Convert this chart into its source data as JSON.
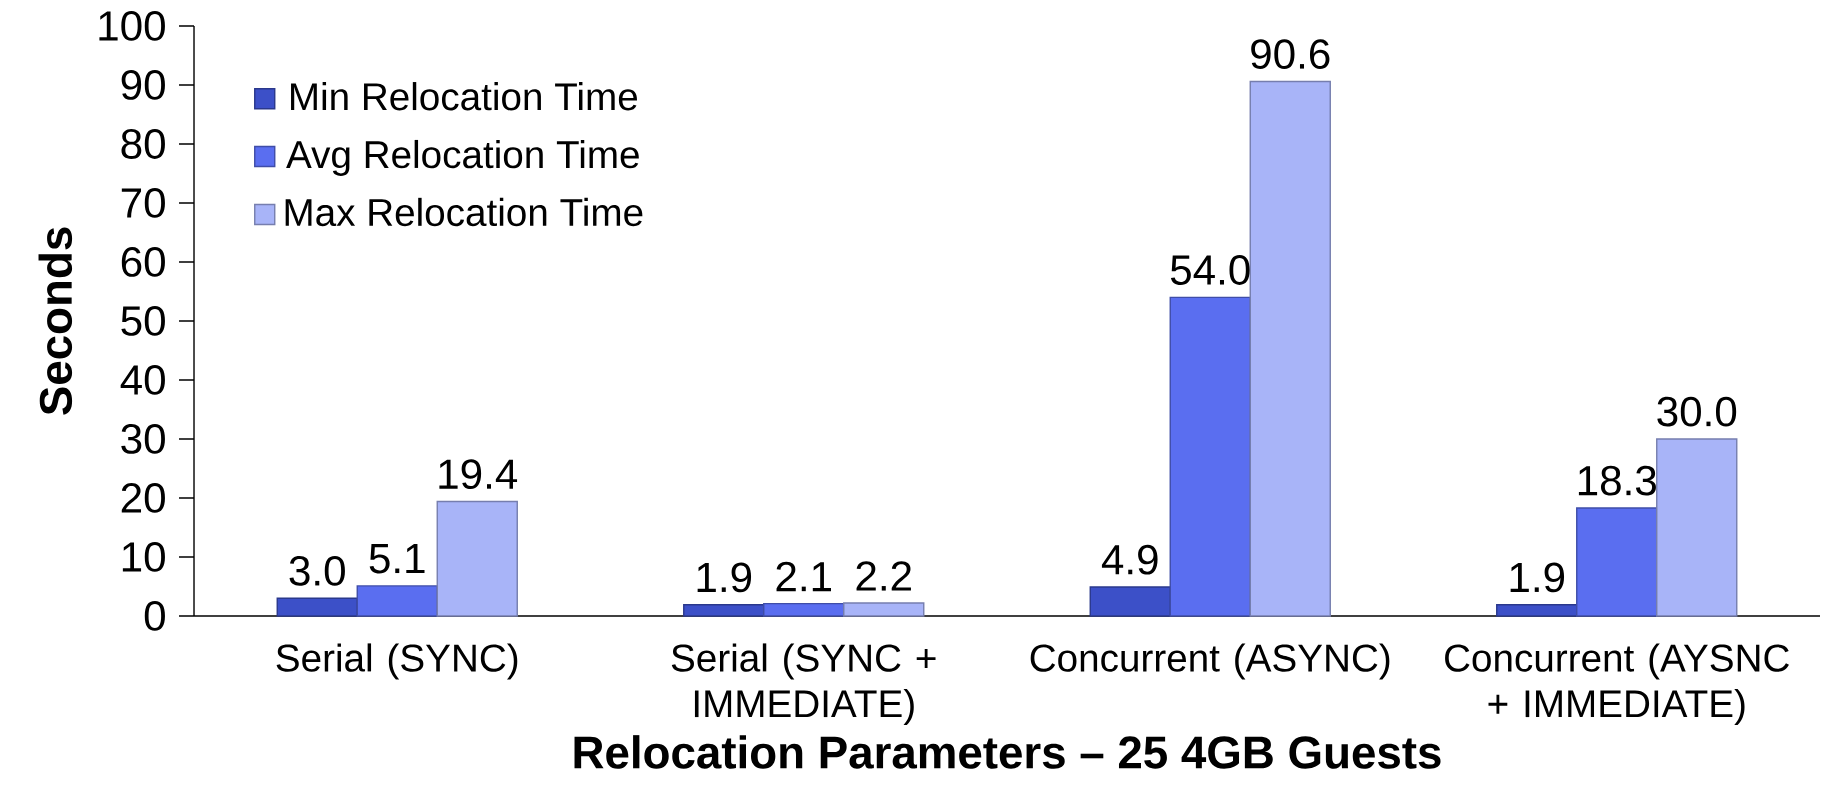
{
  "chart_data": {
    "type": "bar",
    "xlabel": "Relocation Parameters – 25 4GB Guests",
    "ylabel": "Seconds",
    "categories": [
      "Serial (SYNC)",
      "Serial (SYNC + IMMEDIATE)",
      "Concurrent (ASYNC)",
      "Concurrent (AYSNC + IMMEDIATE)"
    ],
    "series": [
      {
        "name": "Min Relocation Time",
        "color": "#3c50c8",
        "values": [
          3.0,
          1.9,
          4.9,
          1.9
        ],
        "value_labels": [
          "3.0",
          "1.9",
          "4.9",
          "1.9"
        ]
      },
      {
        "name": "Avg Relocation Time",
        "color": "#5a6ef0",
        "values": [
          5.1,
          2.1,
          54.0,
          18.3
        ],
        "value_labels": [
          "5.1",
          "2.1",
          "54.0",
          "18.3"
        ]
      },
      {
        "name": "Max Relocation Time",
        "color": "#a8b4f8",
        "values": [
          19.4,
          2.2,
          90.6,
          30.0
        ],
        "value_labels": [
          "19.4",
          "2.2",
          "90.6",
          "30.0"
        ]
      }
    ],
    "ylim": [
      0,
      100
    ],
    "yticks": [
      0,
      10,
      20,
      30,
      40,
      50,
      60,
      70,
      80,
      90,
      100
    ],
    "legend": "top left",
    "grid": false
  }
}
